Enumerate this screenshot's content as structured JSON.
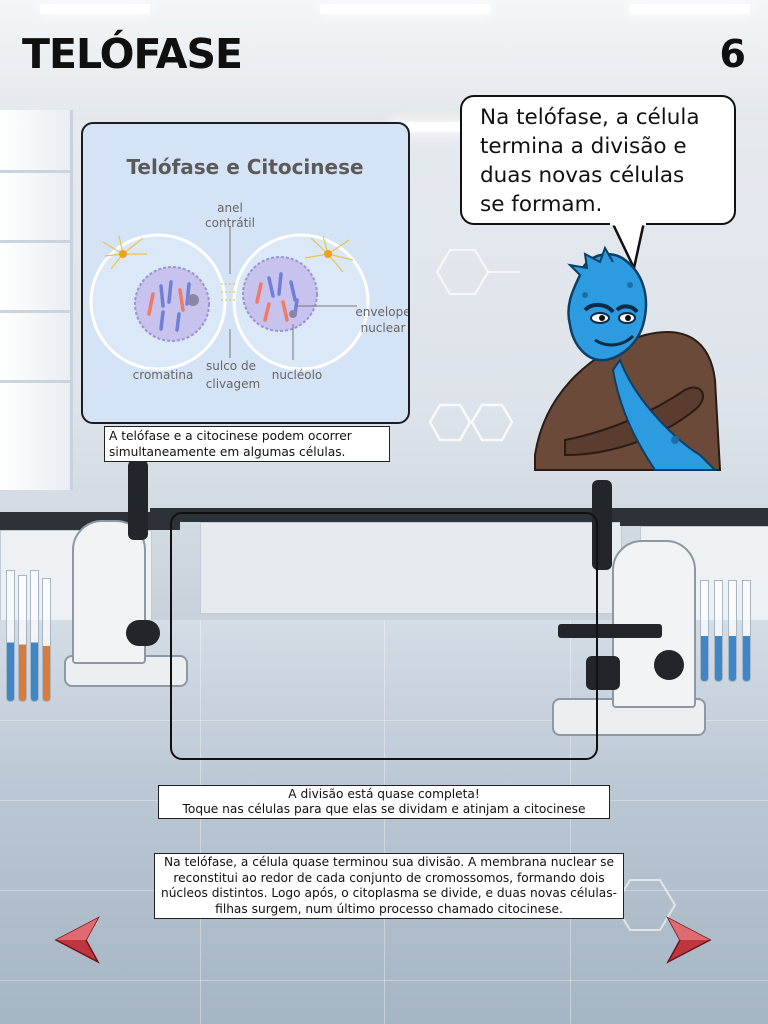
{
  "page": {
    "title": "TELÓFASE",
    "page_number": "6"
  },
  "diagram": {
    "title": "Telófase e Citocinese",
    "labels": {
      "anel_contratil_1": "anel",
      "anel_contratil_2": "contrátil",
      "envelope_1": "envelope",
      "envelope_2": "nuclear",
      "cromatina": "cromatina",
      "sulco_1": "sulco de",
      "sulco_2": "clivagem",
      "nucleolo": "nucléolo"
    },
    "caption": "A telófase e a citocinese podem ocorrer simultaneamente em algumas células."
  },
  "speech_bubble": {
    "line1": "Na telófase, a célula",
    "line2": "termina a divisão e",
    "line3": "duas novas células",
    "line4": "se formam."
  },
  "instruction": {
    "line1": "A divisão está quase completa!",
    "line2": "Toque nas células para que elas se dividam e atinjam a citocinese"
  },
  "explanation": "Na telófase, a célula quase terminou sua divisão. A membrana nuclear se reconstitui ao redor de cada conjunto de cromossomos, formando dois núcleos distintos. Logo após, o citoplasma se divide, e duas novas células-filhas surgem, num último processo chamado citocinese.",
  "navigation": {
    "prev_icon": "arrow-left-icon",
    "next_icon": "arrow-right-icon"
  },
  "colors": {
    "diagram_bg": "#d4e3f6",
    "chromosome_blue": "#6f7fd8",
    "chromosome_red": "#f07a63",
    "nav_arrow": "#c0363e",
    "mascot_blue": "#2d9be0",
    "mascot_coat": "#6b4a3a"
  }
}
